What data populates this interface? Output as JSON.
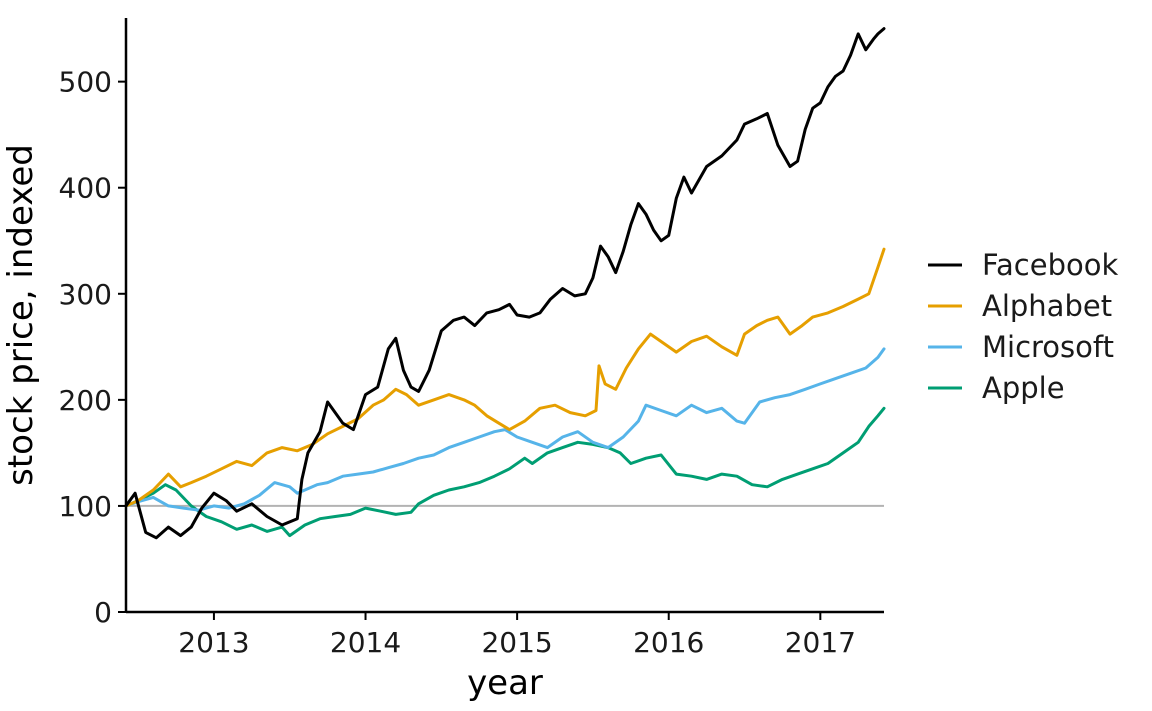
{
  "chart_data": {
    "type": "line",
    "xlabel": "year",
    "ylabel": "stock price, indexed",
    "xlim": [
      2012.42,
      2017.42
    ],
    "ylim": [
      0,
      560
    ],
    "x_ticks": [
      2013,
      2014,
      2015,
      2016,
      2017
    ],
    "y_ticks": [
      0,
      100,
      200,
      300,
      400,
      500
    ],
    "reference_line": {
      "y": 100,
      "color": "#b3b3b3"
    },
    "grid": false,
    "legend_position": "right",
    "series": [
      {
        "name": "Facebook",
        "color": "#000000",
        "x": [
          2012.42,
          2012.48,
          2012.55,
          2012.62,
          2012.7,
          2012.78,
          2012.85,
          2012.92,
          2013.0,
          2013.08,
          2013.15,
          2013.25,
          2013.35,
          2013.45,
          2013.55,
          2013.58,
          2013.62,
          2013.7,
          2013.75,
          2013.85,
          2013.92,
          2014.0,
          2014.08,
          2014.15,
          2014.2,
          2014.25,
          2014.3,
          2014.35,
          2014.42,
          2014.5,
          2014.58,
          2014.65,
          2014.72,
          2014.8,
          2014.88,
          2014.95,
          2015.0,
          2015.08,
          2015.15,
          2015.22,
          2015.3,
          2015.38,
          2015.45,
          2015.5,
          2015.55,
          2015.6,
          2015.65,
          2015.7,
          2015.75,
          2015.8,
          2015.85,
          2015.9,
          2015.95,
          2016.0,
          2016.05,
          2016.1,
          2016.15,
          2016.25,
          2016.35,
          2016.45,
          2016.5,
          2016.58,
          2016.65,
          2016.72,
          2016.8,
          2016.85,
          2016.9,
          2016.95,
          2017.0,
          2017.05,
          2017.1,
          2017.15,
          2017.2,
          2017.25,
          2017.3,
          2017.35,
          2017.38,
          2017.42
        ],
        "values": [
          100,
          112,
          75,
          70,
          80,
          72,
          80,
          98,
          112,
          105,
          95,
          102,
          90,
          82,
          88,
          125,
          150,
          170,
          198,
          178,
          172,
          205,
          212,
          248,
          258,
          228,
          212,
          208,
          228,
          265,
          275,
          278,
          270,
          282,
          285,
          290,
          280,
          278,
          282,
          295,
          305,
          298,
          300,
          315,
          345,
          335,
          320,
          340,
          365,
          385,
          375,
          360,
          350,
          355,
          390,
          410,
          395,
          420,
          430,
          445,
          460,
          465,
          470,
          440,
          420,
          425,
          455,
          475,
          480,
          495,
          505,
          510,
          525,
          545,
          530,
          540,
          545,
          550
        ]
      },
      {
        "name": "Alphabet",
        "color": "#E69F00",
        "x": [
          2012.42,
          2012.5,
          2012.6,
          2012.7,
          2012.78,
          2012.85,
          2012.95,
          2013.05,
          2013.15,
          2013.25,
          2013.35,
          2013.45,
          2013.55,
          2013.65,
          2013.75,
          2013.85,
          2013.95,
          2014.05,
          2014.12,
          2014.2,
          2014.27,
          2014.35,
          2014.45,
          2014.55,
          2014.65,
          2014.72,
          2014.8,
          2014.88,
          2014.95,
          2015.05,
          2015.15,
          2015.25,
          2015.35,
          2015.45,
          2015.52,
          2015.54,
          2015.58,
          2015.65,
          2015.72,
          2015.8,
          2015.88,
          2015.95,
          2016.05,
          2016.15,
          2016.25,
          2016.35,
          2016.45,
          2016.5,
          2016.58,
          2016.65,
          2016.72,
          2016.8,
          2016.88,
          2016.95,
          2017.05,
          2017.15,
          2017.25,
          2017.32,
          2017.38,
          2017.42
        ],
        "values": [
          100,
          105,
          115,
          130,
          118,
          122,
          128,
          135,
          142,
          138,
          150,
          155,
          152,
          158,
          168,
          175,
          182,
          195,
          200,
          210,
          205,
          195,
          200,
          205,
          200,
          195,
          185,
          178,
          172,
          180,
          192,
          195,
          188,
          185,
          190,
          232,
          215,
          210,
          230,
          248,
          262,
          255,
          245,
          255,
          260,
          250,
          242,
          262,
          270,
          275,
          278,
          262,
          270,
          278,
          282,
          288,
          295,
          300,
          325,
          342
        ]
      },
      {
        "name": "Microsoft",
        "color": "#56B4E9",
        "x": [
          2012.42,
          2012.5,
          2012.6,
          2012.7,
          2012.8,
          2012.9,
          2013.0,
          2013.1,
          2013.2,
          2013.3,
          2013.4,
          2013.5,
          2013.55,
          2013.6,
          2013.68,
          2013.75,
          2013.85,
          2013.95,
          2014.05,
          2014.15,
          2014.25,
          2014.35,
          2014.45,
          2014.55,
          2014.65,
          2014.75,
          2014.85,
          2014.92,
          2015.0,
          2015.1,
          2015.2,
          2015.3,
          2015.4,
          2015.5,
          2015.6,
          2015.7,
          2015.8,
          2015.85,
          2015.95,
          2016.05,
          2016.15,
          2016.25,
          2016.35,
          2016.45,
          2016.5,
          2016.6,
          2016.7,
          2016.8,
          2016.9,
          2017.0,
          2017.1,
          2017.2,
          2017.3,
          2017.38,
          2017.42
        ],
        "values": [
          100,
          104,
          108,
          100,
          98,
          96,
          100,
          98,
          102,
          110,
          122,
          118,
          112,
          115,
          120,
          122,
          128,
          130,
          132,
          136,
          140,
          145,
          148,
          155,
          160,
          165,
          170,
          172,
          165,
          160,
          155,
          165,
          170,
          160,
          155,
          165,
          180,
          195,
          190,
          185,
          195,
          188,
          192,
          180,
          178,
          198,
          202,
          205,
          210,
          215,
          220,
          225,
          230,
          240,
          248
        ]
      },
      {
        "name": "Apple",
        "color": "#009E73",
        "x": [
          2012.42,
          2012.5,
          2012.6,
          2012.68,
          2012.75,
          2012.85,
          2012.95,
          2013.05,
          2013.15,
          2013.25,
          2013.35,
          2013.45,
          2013.5,
          2013.6,
          2013.7,
          2013.8,
          2013.9,
          2014.0,
          2014.1,
          2014.2,
          2014.3,
          2014.35,
          2014.45,
          2014.55,
          2014.65,
          2014.75,
          2014.85,
          2014.95,
          2015.05,
          2015.1,
          2015.2,
          2015.3,
          2015.4,
          2015.5,
          2015.6,
          2015.68,
          2015.75,
          2015.85,
          2015.95,
          2016.05,
          2016.15,
          2016.25,
          2016.35,
          2016.45,
          2016.55,
          2016.65,
          2016.75,
          2016.85,
          2016.95,
          2017.05,
          2017.15,
          2017.25,
          2017.32,
          2017.38,
          2017.42
        ],
        "values": [
          100,
          105,
          112,
          120,
          115,
          100,
          90,
          85,
          78,
          82,
          76,
          80,
          72,
          82,
          88,
          90,
          92,
          98,
          95,
          92,
          94,
          102,
          110,
          115,
          118,
          122,
          128,
          135,
          145,
          140,
          150,
          155,
          160,
          158,
          155,
          150,
          140,
          145,
          148,
          130,
          128,
          125,
          130,
          128,
          120,
          118,
          125,
          130,
          135,
          140,
          150,
          160,
          175,
          185,
          192
        ]
      }
    ]
  }
}
